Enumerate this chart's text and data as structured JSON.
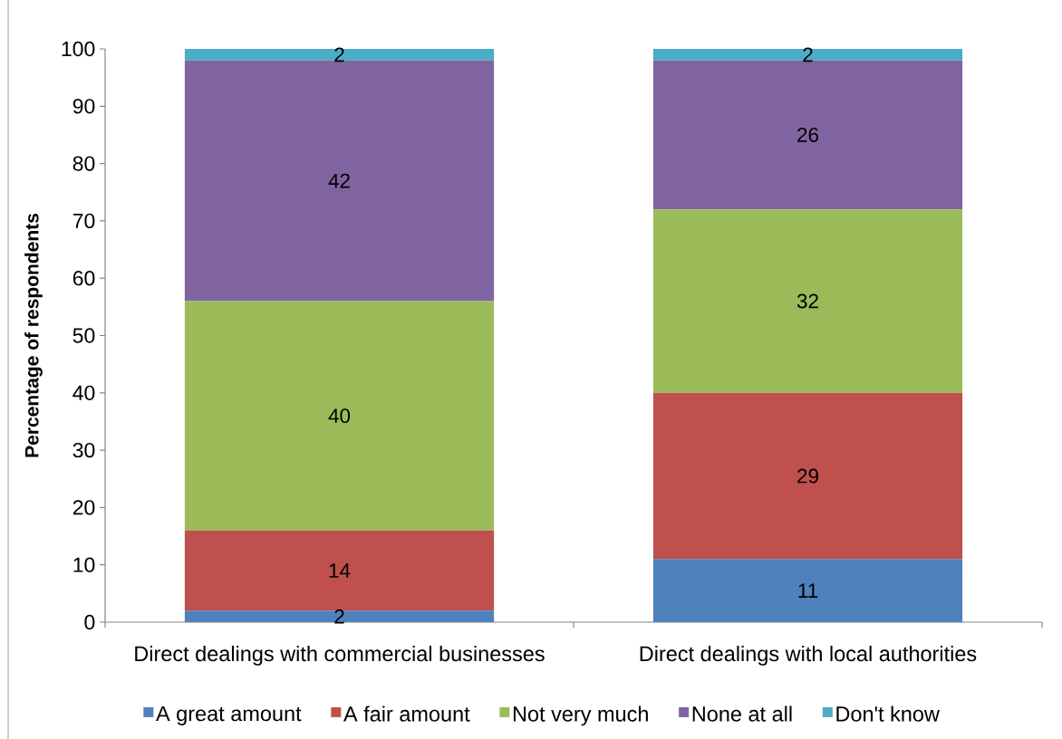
{
  "chart_data": {
    "type": "bar",
    "stacked": true,
    "ylabel": "Percentage of respondents",
    "categories": [
      "Direct dealings with commercial businesses",
      "Direct dealings with local authorities"
    ],
    "series": [
      {
        "name": "A great amount",
        "color": "#4f81bd",
        "values": [
          2,
          11
        ]
      },
      {
        "name": "A fair amount",
        "color": "#c0504d",
        "values": [
          14,
          29
        ]
      },
      {
        "name": "Not very much",
        "color": "#9bbb59",
        "values": [
          40,
          32
        ]
      },
      {
        "name": "None at all",
        "color": "#8064a2",
        "values": [
          42,
          26
        ]
      },
      {
        "name": "Don't know",
        "color": "#4bacc6",
        "values": [
          2,
          2
        ]
      }
    ],
    "ylim": [
      0,
      100
    ],
    "yticks": [
      0,
      10,
      20,
      30,
      40,
      50,
      60,
      70,
      80,
      90,
      100
    ],
    "data_labels": true,
    "legend": "bottom"
  }
}
